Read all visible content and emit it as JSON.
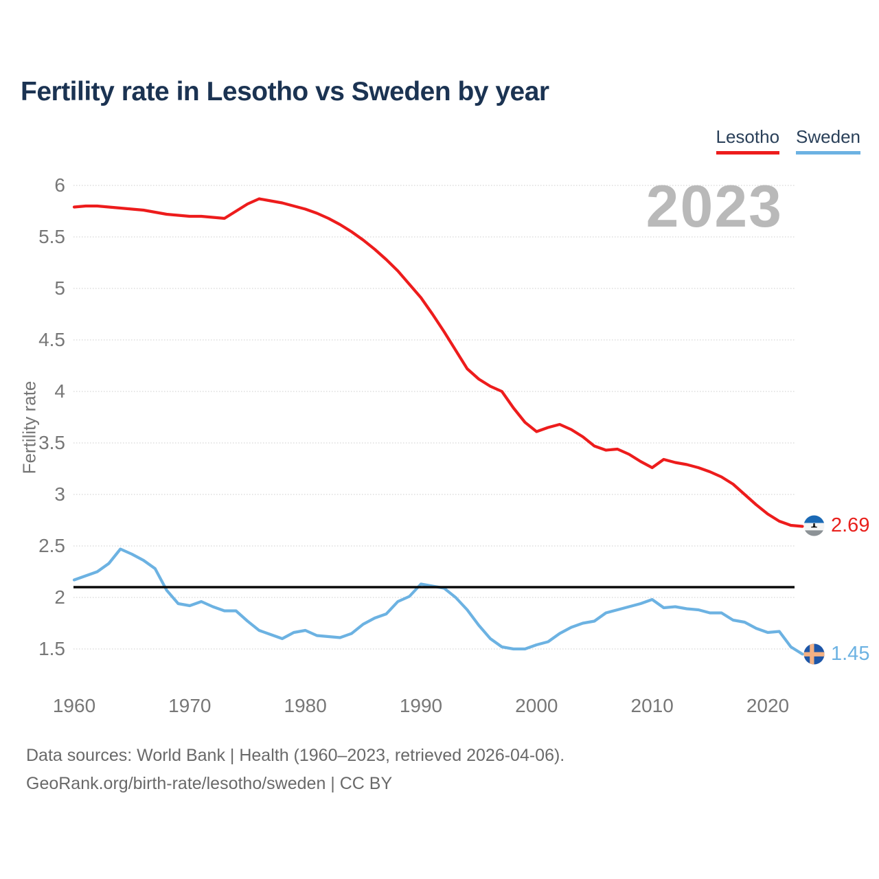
{
  "header": {
    "title": "Fertility rate in Lesotho vs Sweden by year"
  },
  "legend": {
    "items": [
      {
        "id": "lesotho",
        "label": "Lesotho",
        "color": "#ed1c1c"
      },
      {
        "id": "sweden",
        "label": "Sweden",
        "color": "#6cb2e2"
      }
    ]
  },
  "chart_data": {
    "type": "line",
    "title": "Fertility rate in Lesotho vs Sweden by year",
    "ylabel": "Fertility rate",
    "xlabel": "",
    "watermark": "2023",
    "legend_position": "top-right",
    "grid": true,
    "x": [
      1960,
      1961,
      1962,
      1963,
      1964,
      1965,
      1966,
      1967,
      1968,
      1969,
      1970,
      1971,
      1972,
      1973,
      1974,
      1975,
      1976,
      1977,
      1978,
      1979,
      1980,
      1981,
      1982,
      1983,
      1984,
      1985,
      1986,
      1987,
      1988,
      1989,
      1990,
      1991,
      1992,
      1993,
      1994,
      1995,
      1996,
      1997,
      1998,
      1999,
      2000,
      2001,
      2002,
      2003,
      2004,
      2005,
      2006,
      2007,
      2008,
      2009,
      2010,
      2011,
      2012,
      2013,
      2014,
      2015,
      2016,
      2017,
      2018,
      2019,
      2020,
      2021,
      2022,
      2023
    ],
    "series": [
      {
        "name": "Lesotho",
        "color": "#ed1c1c",
        "end_label": "2.69",
        "values": [
          5.79,
          5.8,
          5.8,
          5.79,
          5.78,
          5.77,
          5.76,
          5.74,
          5.72,
          5.71,
          5.7,
          5.7,
          5.69,
          5.68,
          5.75,
          5.82,
          5.87,
          5.85,
          5.83,
          5.8,
          5.77,
          5.73,
          5.68,
          5.62,
          5.55,
          5.47,
          5.38,
          5.28,
          5.17,
          5.04,
          4.91,
          4.75,
          4.58,
          4.4,
          4.22,
          4.12,
          4.05,
          4.0,
          3.84,
          3.7,
          3.61,
          3.65,
          3.68,
          3.63,
          3.56,
          3.47,
          3.43,
          3.44,
          3.39,
          3.32,
          3.26,
          3.34,
          3.31,
          3.29,
          3.26,
          3.22,
          3.17,
          3.1,
          3.0,
          2.9,
          2.81,
          2.74,
          2.7,
          2.69
        ]
      },
      {
        "name": "Sweden",
        "color": "#6cb2e2",
        "end_label": "1.45",
        "values": [
          2.17,
          2.21,
          2.25,
          2.33,
          2.47,
          2.42,
          2.36,
          2.28,
          2.07,
          1.94,
          1.92,
          1.96,
          1.91,
          1.87,
          1.87,
          1.77,
          1.68,
          1.64,
          1.6,
          1.66,
          1.68,
          1.63,
          1.62,
          1.61,
          1.65,
          1.74,
          1.8,
          1.84,
          1.96,
          2.01,
          2.13,
          2.11,
          2.09,
          2.0,
          1.88,
          1.73,
          1.6,
          1.52,
          1.5,
          1.5,
          1.54,
          1.57,
          1.65,
          1.71,
          1.75,
          1.77,
          1.85,
          1.88,
          1.91,
          1.94,
          1.98,
          1.9,
          1.91,
          1.89,
          1.88,
          1.85,
          1.85,
          1.78,
          1.76,
          1.7,
          1.66,
          1.67,
          1.52,
          1.45
        ]
      }
    ],
    "reference_line": {
      "value": 2.1,
      "color": "#0a0a0a"
    },
    "x_axis": {
      "ticks": [
        1960,
        1970,
        1980,
        1990,
        2000,
        2010,
        2020
      ],
      "range": [
        1960,
        2023
      ]
    },
    "y_axis": {
      "title": "Fertility rate",
      "ticks": [
        6,
        5.5,
        5,
        4.5,
        4,
        3.5,
        3,
        2.5,
        2,
        1.5
      ],
      "range": [
        1.5,
        6
      ]
    }
  },
  "footer": {
    "line1": "Data sources: World Bank | Health (1960–2023, retrieved 2026-04-06).",
    "line2": "GeoRank.org/birth-rate/lesotho/sweden | CC BY"
  },
  "colors": {
    "title": "#1b3352",
    "axis_text": "#777777",
    "gridline": "#dddddd",
    "watermark": "#b9b9b9",
    "lesotho": "#ed1c1c",
    "sweden": "#6cb2e2",
    "reference": "#0a0a0a"
  }
}
